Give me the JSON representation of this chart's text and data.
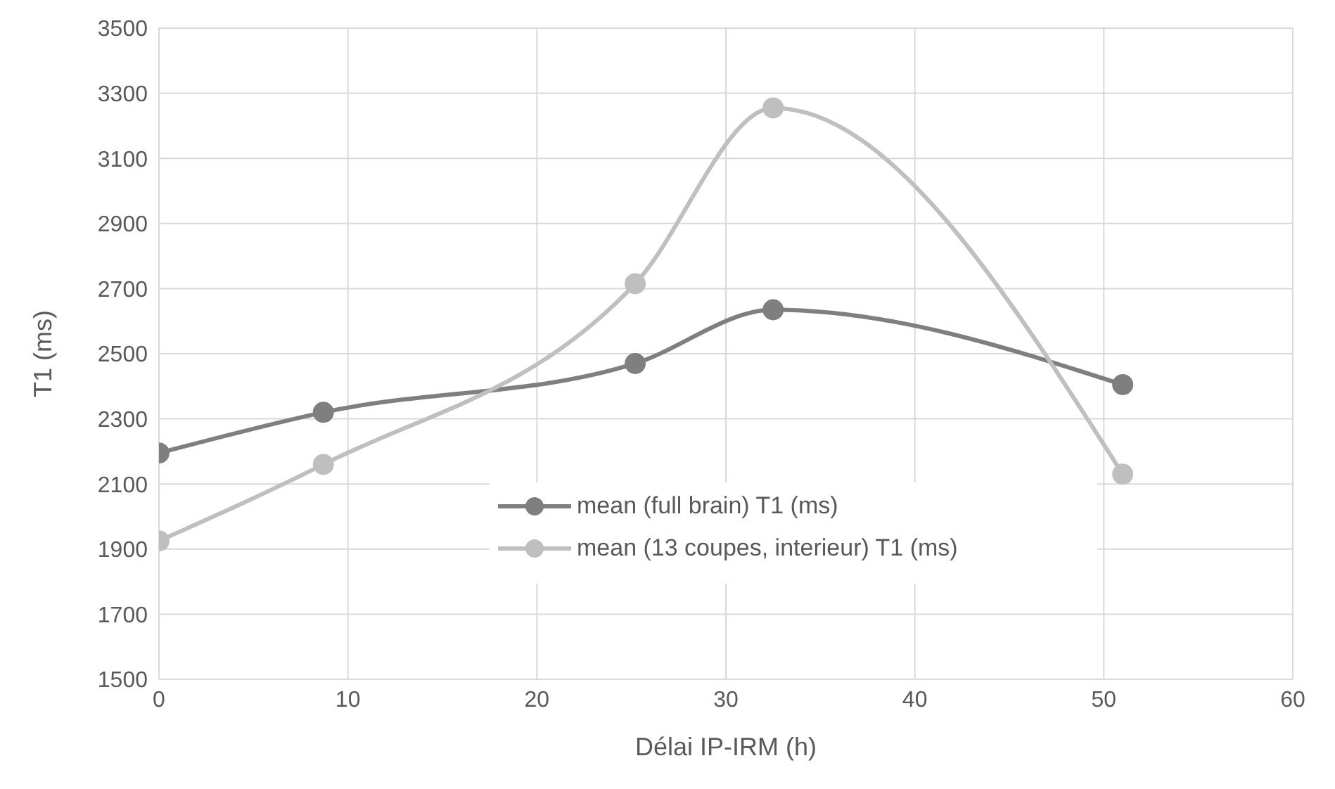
{
  "chart_data": {
    "type": "line",
    "xlabel": "Délai IP-IRM (h)",
    "ylabel": "T1 (ms)",
    "xlim": [
      0,
      60
    ],
    "xticks": [
      0,
      10,
      20,
      30,
      40,
      50,
      60
    ],
    "ylim": [
      1500,
      3500
    ],
    "yticks": [
      1500,
      1700,
      1900,
      2100,
      2300,
      2500,
      2700,
      2900,
      3100,
      3300,
      3500
    ],
    "grid": true,
    "legend": "bottom",
    "marker": "circle",
    "line_style": "solid",
    "series": [
      {
        "name": "mean (full brain) T1 (ms)",
        "color": "#7f7f7f",
        "x": [
          0,
          8.7,
          25.2,
          32.5,
          51
        ],
        "values": [
          2195,
          2320,
          2470,
          2635,
          2405
        ]
      },
      {
        "name": "mean (13 coupes, interieur) T1 (ms)",
        "color": "#bfbfbf",
        "x": [
          0,
          8.7,
          25.2,
          32.5,
          51
        ],
        "values": [
          1925,
          2160,
          2715,
          3255,
          2130
        ]
      }
    ]
  }
}
